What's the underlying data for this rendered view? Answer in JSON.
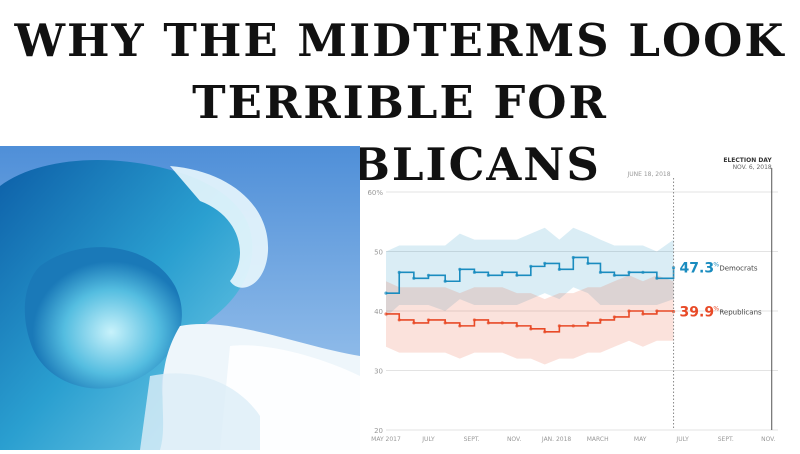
{
  "headline": {
    "line1": "WHY THE MIDTERMS LOOK",
    "line2": "TERRIBLE FOR REPUBLICANS"
  },
  "photo": {
    "icon": "ocean-wave-image"
  },
  "chart_data": {
    "type": "line",
    "title": "",
    "xlabel": "",
    "ylabel": "",
    "ylim": [
      20,
      60
    ],
    "y_ticks": [
      "20",
      "30",
      "40",
      "50",
      "60%"
    ],
    "x_ticks": [
      "MAY 2017",
      "JULY",
      "SEPT.",
      "NOV.",
      "JAN. 2018",
      "MARCH",
      "MAY",
      "JULY",
      "SEPT.",
      "NOV."
    ],
    "x_range": [
      "2017-05-01",
      "2018-11-15"
    ],
    "grid": true,
    "markers": [
      {
        "label": "JUNE 18, 2018",
        "date": "2018-06-18"
      },
      {
        "label_top": "ELECTION DAY",
        "label_bottom": "NOV. 6, 2018",
        "date": "2018-11-06"
      }
    ],
    "series": [
      {
        "name": "Democrats",
        "color": "#1a8cbf",
        "final_value": "47.3",
        "x": [
          "2017-05-01",
          "2017-05-20",
          "2017-06-10",
          "2017-07-01",
          "2017-07-25",
          "2017-08-15",
          "2017-09-05",
          "2017-09-25",
          "2017-10-15",
          "2017-11-05",
          "2017-11-25",
          "2017-12-15",
          "2018-01-05",
          "2018-01-25",
          "2018-02-15",
          "2018-03-05",
          "2018-03-25",
          "2018-04-15",
          "2018-05-05",
          "2018-05-25",
          "2018-06-18"
        ],
        "y": [
          43.0,
          46.5,
          45.5,
          46.0,
          45.0,
          47.0,
          46.5,
          46.0,
          46.5,
          46.0,
          47.5,
          48.0,
          47.0,
          49.0,
          48.0,
          46.5,
          46.0,
          46.5,
          46.5,
          45.5,
          47.3
        ],
        "band_low": [
          39,
          41,
          41,
          41,
          40,
          42,
          41,
          41,
          41,
          41,
          42,
          43,
          42,
          44,
          43,
          41,
          41,
          41,
          41,
          41,
          42
        ],
        "band_high": [
          50,
          51,
          51,
          51,
          51,
          53,
          52,
          52,
          52,
          52,
          53,
          54,
          52,
          54,
          53,
          52,
          51,
          51,
          51,
          50,
          52
        ]
      },
      {
        "name": "Republicans",
        "color": "#e84a27",
        "final_value": "39.9",
        "x": [
          "2017-05-01",
          "2017-05-20",
          "2017-06-10",
          "2017-07-01",
          "2017-07-25",
          "2017-08-15",
          "2017-09-05",
          "2017-09-25",
          "2017-10-15",
          "2017-11-05",
          "2017-11-25",
          "2017-12-15",
          "2018-01-05",
          "2018-01-25",
          "2018-02-15",
          "2018-03-05",
          "2018-03-25",
          "2018-04-15",
          "2018-05-05",
          "2018-05-25",
          "2018-06-18"
        ],
        "y": [
          39.5,
          38.5,
          38.0,
          38.5,
          38.0,
          37.5,
          38.5,
          38.0,
          38.0,
          37.5,
          37.0,
          36.5,
          37.5,
          37.5,
          38.0,
          38.5,
          39.0,
          40.0,
          39.5,
          40.0,
          39.9
        ],
        "band_low": [
          34,
          33,
          33,
          33,
          33,
          32,
          33,
          33,
          33,
          32,
          32,
          31,
          32,
          32,
          33,
          33,
          34,
          35,
          34,
          35,
          35
        ],
        "band_high": [
          45,
          44,
          44,
          44,
          44,
          43,
          44,
          44,
          44,
          43,
          43,
          42,
          43,
          43,
          44,
          44,
          45,
          46,
          45,
          46,
          45
        ]
      }
    ],
    "value_suffix": "%"
  }
}
